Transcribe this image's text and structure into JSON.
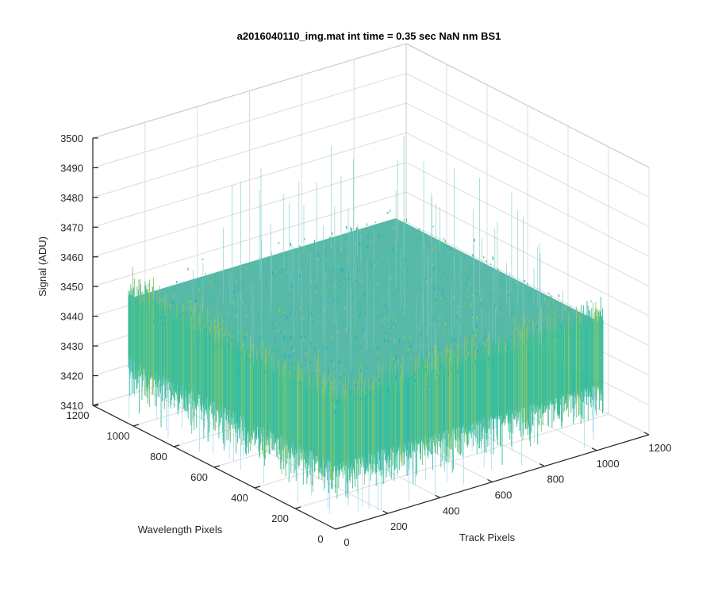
{
  "chart_data": {
    "type": "surface",
    "title": "a2016040110_img.mat int time = 0.35 sec  NaN nm BS1",
    "xlabel": "Track Pixels",
    "ylabel": "Wavelength Pixels",
    "zlabel": "Signal (ADU)",
    "xlim": [
      0,
      1200
    ],
    "ylim": [
      0,
      1200
    ],
    "zlim": [
      3410,
      3500
    ],
    "x_ticks": [
      "0",
      "200",
      "400",
      "600",
      "800",
      "1000",
      "1200"
    ],
    "y_ticks": [
      "0",
      "200",
      "400",
      "600",
      "800",
      "1000",
      "1200"
    ],
    "z_ticks": [
      "3410",
      "3420",
      "3430",
      "3440",
      "3450",
      "3460",
      "3470",
      "3480",
      "3490",
      "3500"
    ],
    "grid": true,
    "surface": {
      "x_extent": [
        0,
        1024
      ],
      "y_extent": [
        0,
        1024
      ],
      "z_mean": 3440,
      "z_min": 3412,
      "z_max": 3490,
      "colormap": [
        "#0a72c0",
        "#1f96d6",
        "#22b0c4",
        "#3fbf9a",
        "#8cc66a",
        "#c8c23a"
      ]
    }
  }
}
